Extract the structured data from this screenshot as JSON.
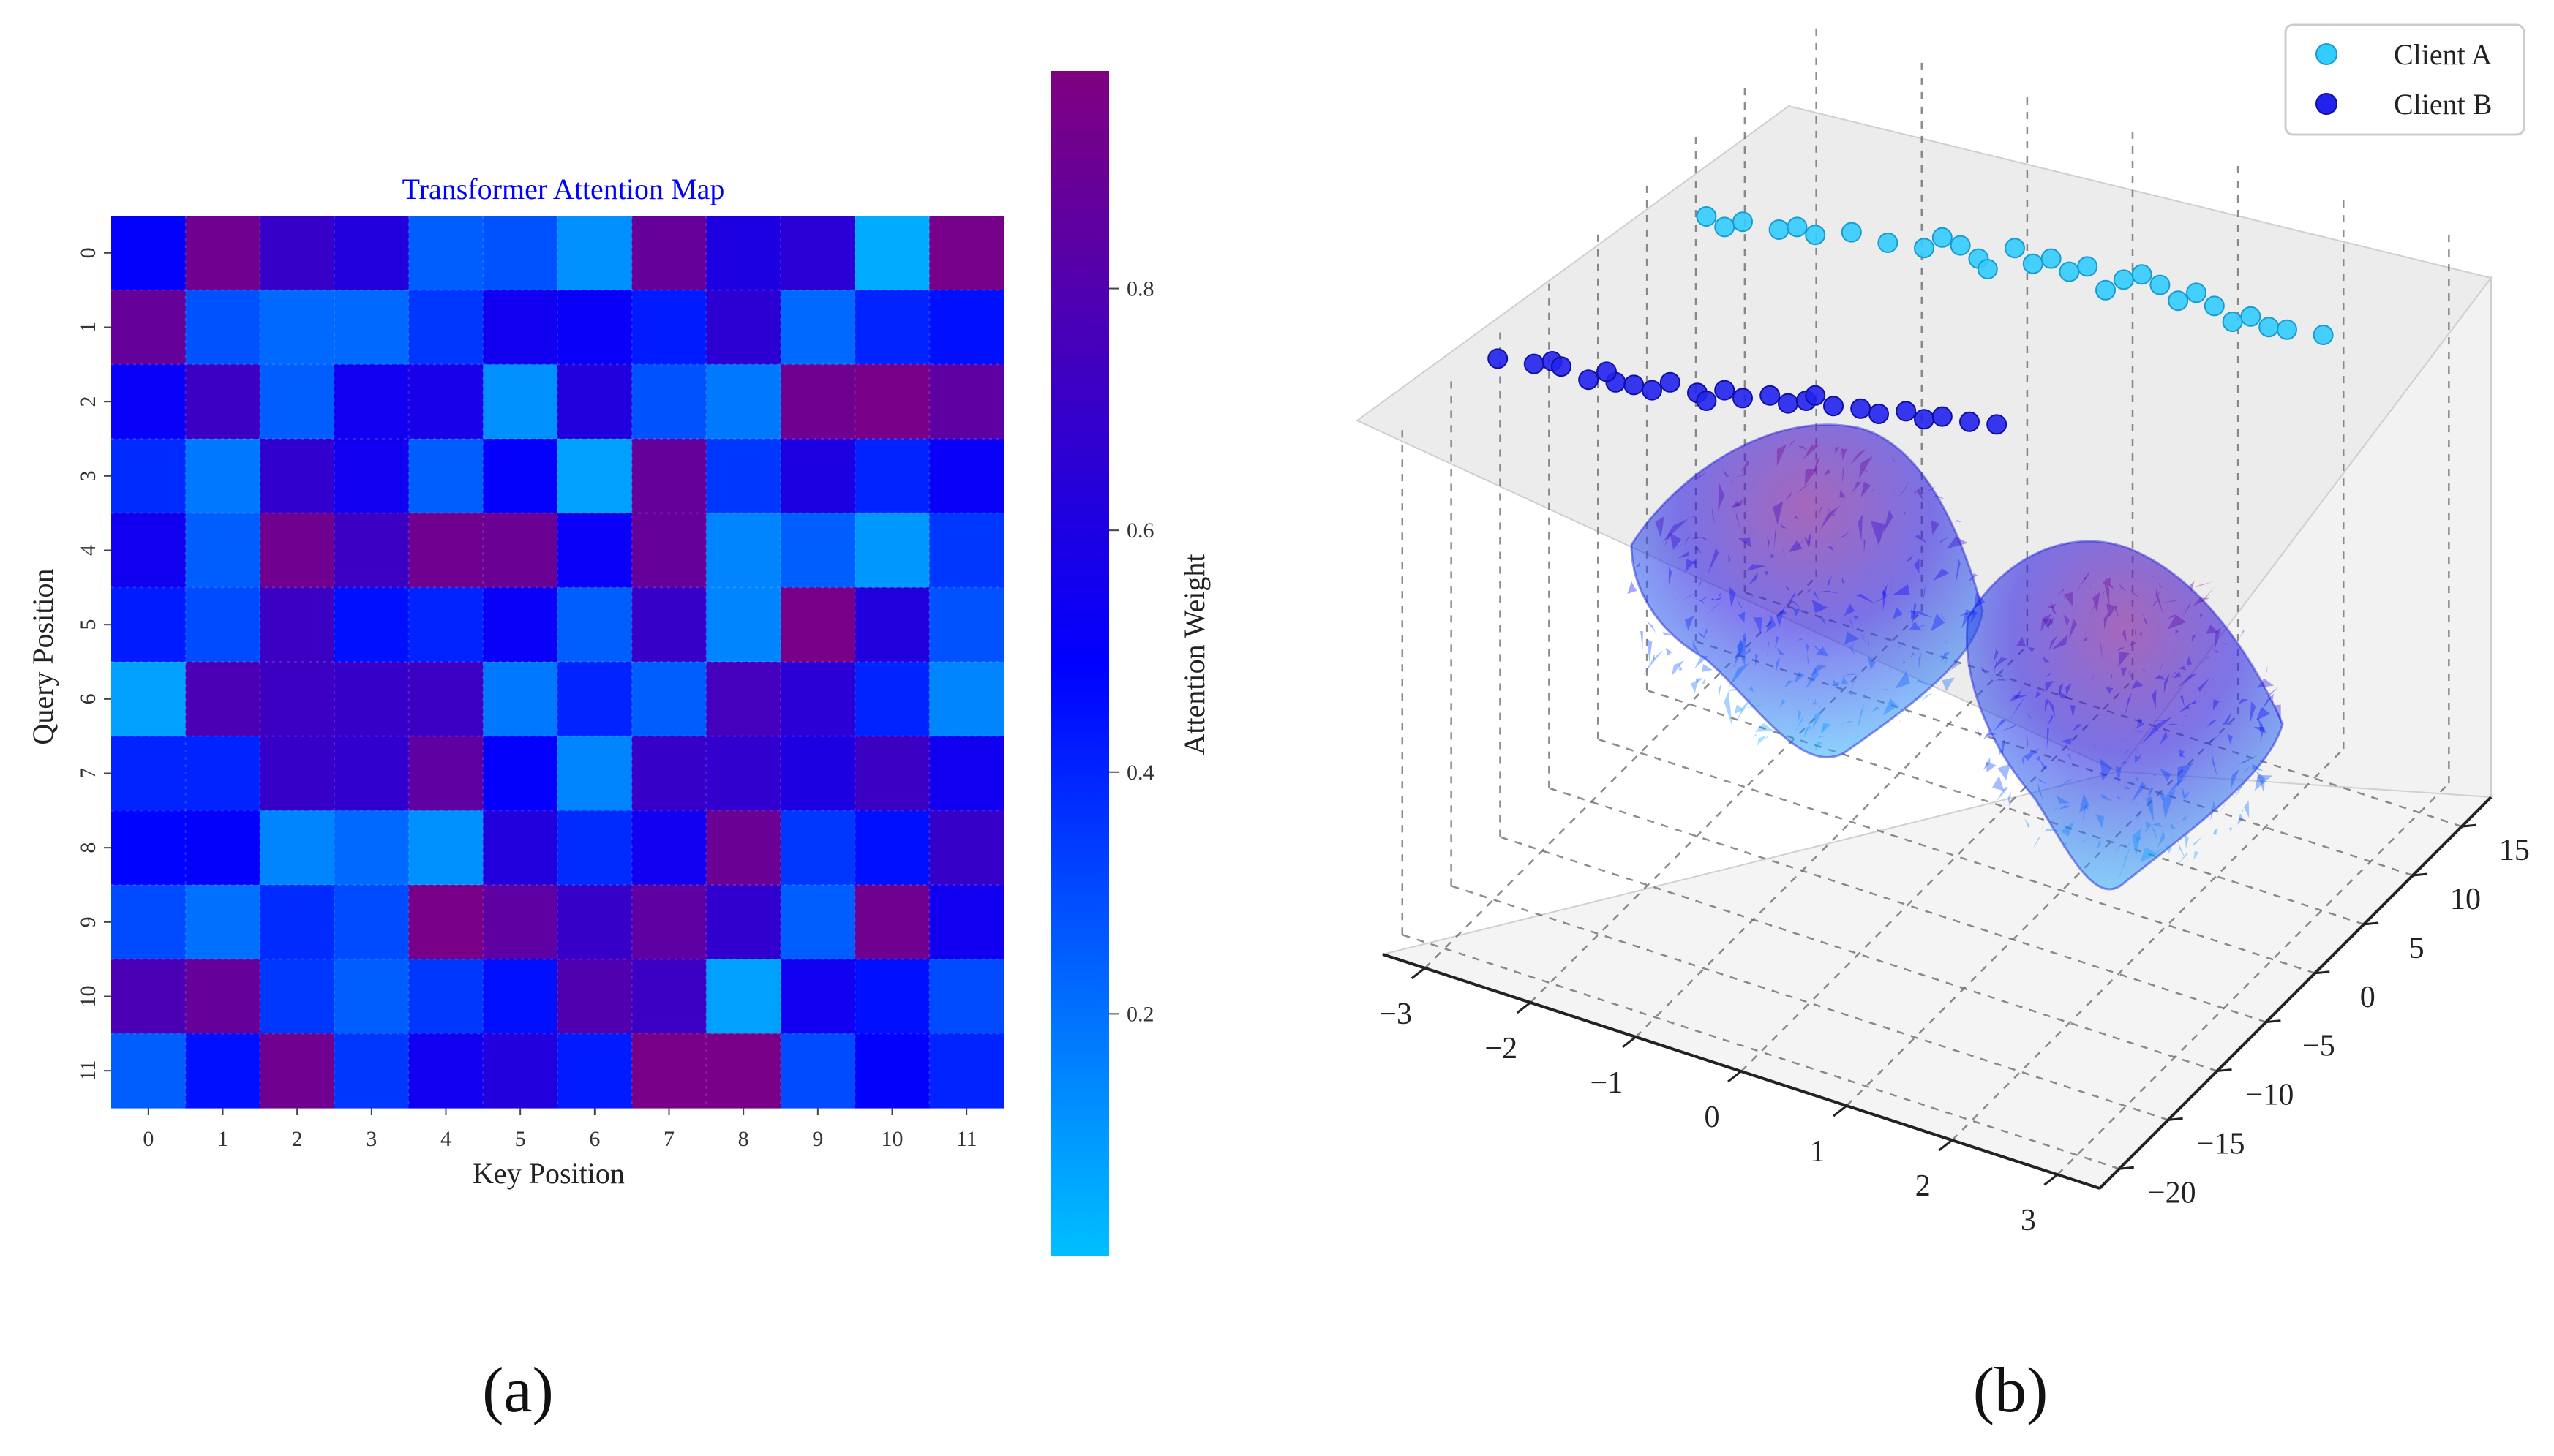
{
  "chart_data": [
    {
      "type": "heatmap",
      "title": "Transformer Attention Map",
      "xlabel": "Key Position",
      "ylabel": "Query Position",
      "x_ticks": [
        "0",
        "1",
        "2",
        "3",
        "4",
        "5",
        "6",
        "7",
        "8",
        "9",
        "10",
        "11"
      ],
      "y_ticks": [
        "0",
        "1",
        "2",
        "3",
        "4",
        "5",
        "6",
        "7",
        "8",
        "9",
        "10",
        "11"
      ],
      "colorbar": {
        "label": "Attention Weight",
        "ticks": [
          "0.2",
          "0.4",
          "0.6",
          "0.8"
        ],
        "tick_values": [
          0.2,
          0.4,
          0.6,
          0.8
        ],
        "range": [
          0.0,
          0.98
        ],
        "colors": [
          "#00bfff",
          "#0000ff",
          "#800080"
        ]
      },
      "matrix": [
        [
          0.5,
          0.92,
          0.7,
          0.62,
          0.25,
          0.28,
          0.12,
          0.88,
          0.6,
          0.65,
          0.05,
          0.94
        ],
        [
          0.88,
          0.28,
          0.22,
          0.22,
          0.35,
          0.55,
          0.52,
          0.42,
          0.66,
          0.22,
          0.4,
          0.45
        ],
        [
          0.52,
          0.72,
          0.25,
          0.55,
          0.58,
          0.12,
          0.62,
          0.28,
          0.18,
          0.92,
          0.95,
          0.85
        ],
        [
          0.38,
          0.18,
          0.68,
          0.55,
          0.25,
          0.5,
          0.08,
          0.88,
          0.35,
          0.6,
          0.4,
          0.52
        ],
        [
          0.55,
          0.25,
          0.92,
          0.72,
          0.92,
          0.9,
          0.52,
          0.88,
          0.15,
          0.25,
          0.1,
          0.35
        ],
        [
          0.42,
          0.3,
          0.72,
          0.45,
          0.4,
          0.52,
          0.25,
          0.7,
          0.15,
          0.95,
          0.62,
          0.28
        ],
        [
          0.08,
          0.78,
          0.72,
          0.7,
          0.72,
          0.18,
          0.4,
          0.25,
          0.75,
          0.65,
          0.4,
          0.15
        ],
        [
          0.4,
          0.4,
          0.7,
          0.68,
          0.85,
          0.5,
          0.15,
          0.7,
          0.68,
          0.6,
          0.72,
          0.55
        ],
        [
          0.48,
          0.5,
          0.15,
          0.22,
          0.12,
          0.62,
          0.38,
          0.55,
          0.9,
          0.35,
          0.45,
          0.7
        ],
        [
          0.3,
          0.2,
          0.38,
          0.3,
          0.95,
          0.85,
          0.7,
          0.85,
          0.68,
          0.25,
          0.92,
          0.55
        ],
        [
          0.78,
          0.88,
          0.35,
          0.25,
          0.35,
          0.45,
          0.8,
          0.72,
          0.08,
          0.55,
          0.45,
          0.3
        ],
        [
          0.25,
          0.45,
          0.92,
          0.35,
          0.55,
          0.62,
          0.42,
          0.95,
          0.95,
          0.3,
          0.5,
          0.4
        ]
      ],
      "panel_label": "(a)"
    },
    {
      "type": "scatter",
      "subtype": "3d-surface-scatter",
      "x_ticks": [
        "−3",
        "−2",
        "−1",
        "0",
        "1",
        "2",
        "3"
      ],
      "x_tick_values": [
        -3,
        -2,
        -1,
        0,
        1,
        2,
        3
      ],
      "y_ticks": [
        "15",
        "10",
        "5",
        "0",
        "−5",
        "−10",
        "−15",
        "−20"
      ],
      "y_tick_values": [
        15,
        10,
        5,
        0,
        -5,
        -10,
        -15,
        -20
      ],
      "xlim": [
        -3.4,
        3.4
      ],
      "ylim": [
        -22,
        18
      ],
      "zlim": [
        0,
        1
      ],
      "legend_position": "top-right",
      "surface": {
        "description": "Two dome-shaped noisy surfaces (Gaussian bumps)",
        "peaks": [
          {
            "x": -1.0,
            "y": 6.0,
            "height": 0.85
          },
          {
            "x": 1.0,
            "y": -6.0,
            "height": 0.85
          }
        ],
        "colors": [
          "#00bfff",
          "#0000ff",
          "#800080"
        ]
      },
      "series": [
        {
          "name": "Client A",
          "color": "#33ccff",
          "points": [
            [
              0.26,
              0.9
            ],
            [
              0.3,
              0.88
            ],
            [
              0.28,
              0.86
            ],
            [
              0.34,
              0.85
            ],
            [
              0.38,
              0.83
            ],
            [
              0.36,
              0.86
            ],
            [
              0.42,
              0.84
            ],
            [
              0.46,
              0.8
            ],
            [
              0.52,
              0.82
            ],
            [
              0.5,
              0.78
            ],
            [
              0.54,
              0.79
            ],
            [
              0.56,
              0.74
            ],
            [
              0.6,
              0.78
            ],
            [
              0.62,
              0.72
            ],
            [
              0.64,
              0.74
            ],
            [
              0.66,
              0.69
            ],
            [
              0.68,
              0.71
            ],
            [
              0.72,
              0.66
            ],
            [
              0.74,
              0.68
            ],
            [
              0.76,
              0.64
            ],
            [
              0.8,
              0.61
            ],
            [
              0.78,
              0.58
            ],
            [
              0.82,
              0.56
            ],
            [
              0.86,
              0.52
            ],
            [
              0.84,
              0.5
            ],
            [
              0.88,
              0.48
            ],
            [
              0.9,
              0.47
            ],
            [
              0.57,
              0.7
            ],
            [
              0.7,
              0.62
            ],
            [
              0.94,
              0.45
            ]
          ]
        },
        {
          "name": "Client B",
          "color": "#2222ee",
          "points": [
            [
              0.03,
              0.36
            ],
            [
              0.07,
              0.34
            ],
            [
              0.09,
              0.35
            ],
            [
              0.1,
              0.33
            ],
            [
              0.13,
              0.28
            ],
            [
              0.16,
              0.27
            ],
            [
              0.18,
              0.26
            ],
            [
              0.2,
              0.24
            ],
            [
              0.22,
              0.27
            ],
            [
              0.25,
              0.23
            ],
            [
              0.28,
              0.24
            ],
            [
              0.3,
              0.21
            ],
            [
              0.33,
              0.22
            ],
            [
              0.35,
              0.19
            ],
            [
              0.37,
              0.2
            ],
            [
              0.4,
              0.18
            ],
            [
              0.43,
              0.17
            ],
            [
              0.45,
              0.15
            ],
            [
              0.48,
              0.16
            ],
            [
              0.5,
              0.13
            ],
            [
              0.52,
              0.14
            ],
            [
              0.55,
              0.12
            ],
            [
              0.26,
              0.2
            ],
            [
              0.38,
              0.22
            ],
            [
              0.15,
              0.31
            ],
            [
              0.58,
              0.11
            ]
          ]
        }
      ],
      "panel_label": "(b)"
    }
  ]
}
